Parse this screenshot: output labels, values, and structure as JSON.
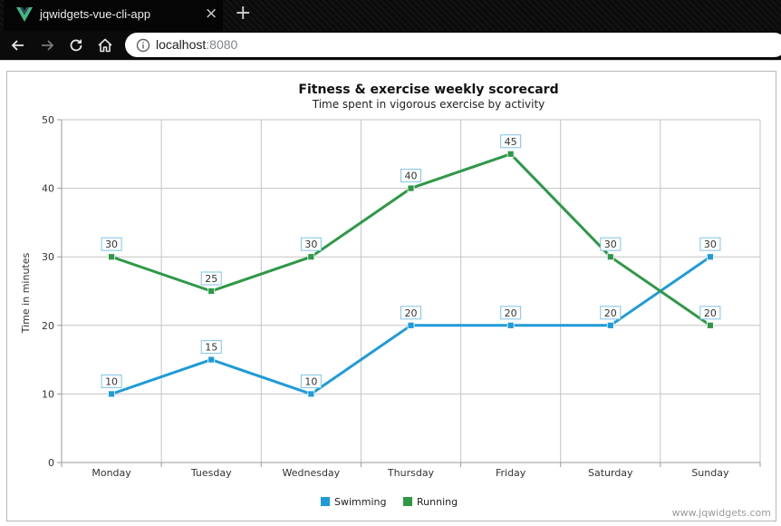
{
  "browser": {
    "tab_title": "jqwidgets-vue-cli-app",
    "tab_close": "×",
    "new_tab": "+",
    "url_host": "localhost",
    "url_port": ":8080",
    "icons": [
      "vue-logo-icon",
      "close-icon",
      "plus-icon",
      "back-arrow-icon",
      "forward-arrow-icon",
      "reload-icon",
      "home-icon",
      "info-icon"
    ]
  },
  "chart_data": {
    "type": "line",
    "title": "Fitness & exercise weekly scorecard",
    "subtitle": "Time spent in vigorous exercise by activity",
    "xlabel": "",
    "ylabel": "Time in minutes",
    "categories": [
      "Monday",
      "Tuesday",
      "Wednesday",
      "Thursday",
      "Friday",
      "Saturday",
      "Sunday"
    ],
    "ylim": [
      0,
      50
    ],
    "yticks": [
      0,
      10,
      20,
      30,
      40,
      50
    ],
    "grid": true,
    "legend_position": "bottom",
    "series": [
      {
        "name": "Swimming",
        "color": "#1f9bd8",
        "values": [
          10,
          15,
          10,
          20,
          20,
          20,
          30
        ]
      },
      {
        "name": "Running",
        "color": "#2e9847",
        "values": [
          30,
          25,
          30,
          40,
          45,
          30,
          20
        ]
      }
    ],
    "watermark": "www.jqwidgets.com"
  }
}
